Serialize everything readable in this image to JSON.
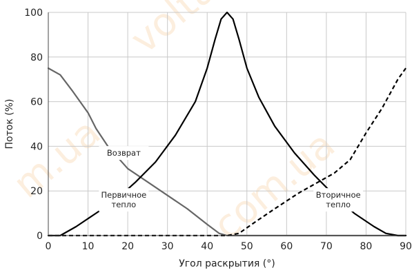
{
  "chart_data": {
    "type": "line",
    "xlabel": "Угол раскрытия (°)",
    "ylabel": "Поток (%)",
    "xlim": [
      0,
      90
    ],
    "ylim": [
      0,
      100
    ],
    "xticks": [
      0,
      10,
      20,
      30,
      40,
      50,
      60,
      70,
      80,
      90
    ],
    "yticks": [
      0,
      20,
      40,
      60,
      80,
      100
    ],
    "grid": true,
    "series": [
      {
        "color": "#666666",
        "style": "solid",
        "points": [
          [
            0,
            75
          ],
          [
            3,
            72
          ],
          [
            6,
            65
          ],
          [
            10,
            55
          ],
          [
            12,
            48
          ],
          [
            15,
            40
          ],
          [
            20,
            30
          ],
          [
            25,
            24
          ],
          [
            30,
            18
          ],
          [
            35,
            12
          ],
          [
            40,
            5
          ],
          [
            43,
            1
          ],
          [
            45,
            0
          ],
          [
            90,
            0
          ]
        ]
      },
      {
        "color": "#000000",
        "style": "solid",
        "points": [
          [
            0,
            0
          ],
          [
            3,
            0
          ],
          [
            7,
            4
          ],
          [
            12,
            10
          ],
          [
            17,
            16
          ],
          [
            22,
            24
          ],
          [
            27,
            33
          ],
          [
            32,
            45
          ],
          [
            37,
            60
          ],
          [
            40,
            75
          ],
          [
            42,
            88
          ],
          [
            43.5,
            97
          ],
          [
            45,
            100
          ],
          [
            46.5,
            97
          ],
          [
            48,
            88
          ],
          [
            50,
            75
          ],
          [
            53,
            62
          ],
          [
            57,
            49
          ],
          [
            62,
            37
          ],
          [
            67,
            27
          ],
          [
            72,
            18
          ],
          [
            77,
            10
          ],
          [
            82,
            4
          ],
          [
            85,
            1
          ],
          [
            88,
            0
          ],
          [
            90,
            0
          ]
        ]
      },
      {
        "color": "#000000",
        "style": "dashed",
        "points": [
          [
            0,
            0
          ],
          [
            45,
            0
          ],
          [
            48,
            1
          ],
          [
            52,
            6
          ],
          [
            57,
            12
          ],
          [
            63,
            19
          ],
          [
            68,
            24
          ],
          [
            72,
            28
          ],
          [
            76,
            34
          ],
          [
            80,
            46
          ],
          [
            84,
            57
          ],
          [
            88,
            70
          ],
          [
            90,
            75
          ]
        ]
      }
    ],
    "annotations": [
      {
        "lines": [
          "Возврат"
        ],
        "x": 19,
        "y": 37
      },
      {
        "lines": [
          "Первичное",
          "тепло"
        ],
        "x": 19,
        "y": 16
      },
      {
        "lines": [
          "Вторичное",
          "тепло"
        ],
        "x": 73,
        "y": 16
      }
    ]
  }
}
